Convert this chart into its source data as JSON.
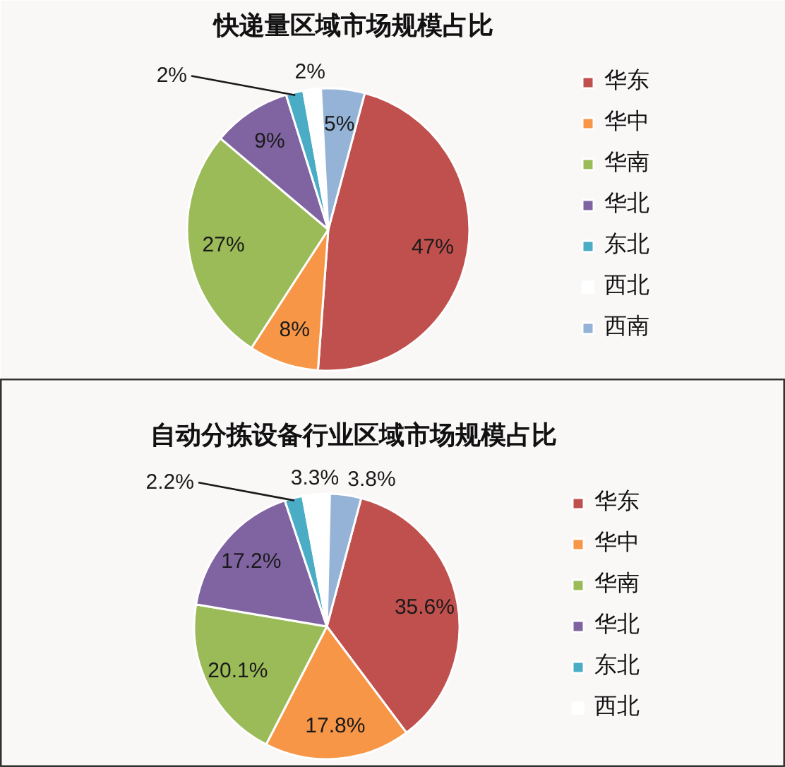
{
  "chart_data": [
    {
      "type": "pie",
      "title": "快递量区域市场规模占比",
      "categories": [
        "华东",
        "华中",
        "华南",
        "华北",
        "东北",
        "西北",
        "西南"
      ],
      "values": [
        47,
        8,
        27,
        9,
        2,
        2,
        5
      ],
      "colors": [
        "#c0504d",
        "#f79646",
        "#9bbb59",
        "#8064a2",
        "#4bacc6",
        "#ffffff",
        "#95b3d7"
      ],
      "value_labels": [
        "47%",
        "8%",
        "27%",
        "9%",
        "2%",
        "2%",
        "5%"
      ],
      "legend": "right"
    },
    {
      "type": "pie",
      "title": "自动分拣设备行业区域市场规模占比",
      "categories": [
        "华东",
        "华中",
        "华南",
        "华北",
        "东北",
        "西北",
        null
      ],
      "values": [
        35.6,
        17.8,
        20.1,
        17.2,
        2.2,
        3.3,
        3.8
      ],
      "colors": [
        "#c0504d",
        "#f79646",
        "#9bbb59",
        "#8064a2",
        "#4bacc6",
        "#ffffff",
        "#95b3d7"
      ],
      "value_labels": [
        "35.6%",
        "17.8%",
        "20.1%",
        "17.2%",
        "2.2%",
        "3.3%",
        "3.8%"
      ],
      "legend": "right"
    }
  ]
}
